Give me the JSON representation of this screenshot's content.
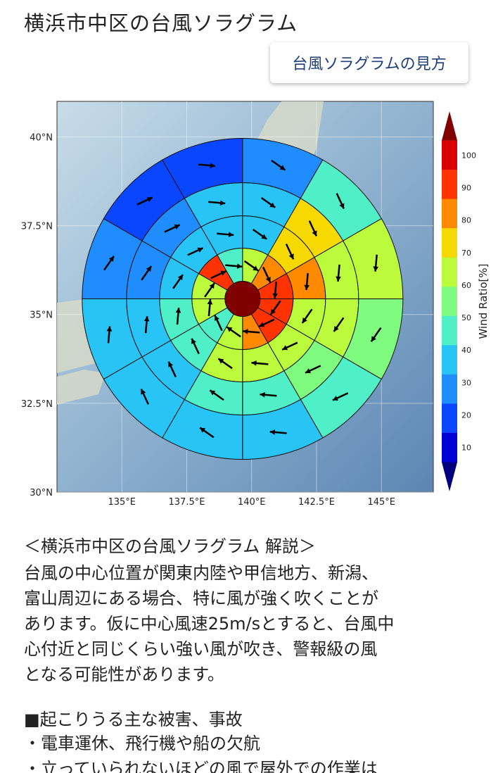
{
  "page": {
    "title": "横浜市中区の台風ソラグラム",
    "howto_button": "台風ソラグラムの見方"
  },
  "chart_data": {
    "type": "heatmap",
    "kind": "polar wind-ratio diagram over map",
    "center": [
      139.65,
      35.44
    ],
    "lon_ticks": [
      "135°E",
      "137.5°E",
      "140°E",
      "142.5°E",
      "145°E"
    ],
    "lat_ticks": [
      "40°N",
      "37.5°N",
      "35°N",
      "32.5°N",
      "30°N"
    ],
    "xlim": [
      132.5,
      147.0
    ],
    "ylim": [
      30.0,
      41.0
    ],
    "colorbar": {
      "label": "Wind Ratio[%]",
      "ticks": [
        10,
        20,
        30,
        40,
        50,
        60,
        70,
        80,
        90,
        100
      ],
      "colors": [
        "#00007f",
        "#0000d6",
        "#0a46ff",
        "#1f8cff",
        "#29c4f6",
        "#4ff0c8",
        "#7ffb80",
        "#bcfb3c",
        "#f6d900",
        "#ff8a00",
        "#ff3300",
        "#d90000",
        "#800000"
      ]
    },
    "rings": [
      {
        "name": "ring-1",
        "values": [
          60,
          75,
          85,
          80,
          85,
          75,
          55,
          45,
          55,
          55,
          80,
          45
        ]
      },
      {
        "name": "ring-2",
        "values": [
          35,
          70,
          75,
          60,
          60,
          55,
          55,
          40,
          40,
          30,
          30,
          35
        ]
      },
      {
        "name": "ring-3",
        "values": [
          30,
          65,
          55,
          55,
          50,
          40,
          40,
          30,
          30,
          25,
          25,
          30
        ]
      },
      {
        "name": "ring-4",
        "values": [
          25,
          45,
          55,
          50,
          45,
          35,
          30,
          30,
          30,
          25,
          20,
          20
        ]
      }
    ],
    "center_value": 100,
    "grid": true
  },
  "commentary": {
    "title": "＜横浜市中区の台風ソラグラム 解説＞",
    "lines": [
      "台風の中心位置が関東内陸や甲信地方、新潟、",
      "富山周辺にある場合、特に風が強く吹くことが",
      "あります。仮に中心風速25m/sとすると、台風中",
      "心付近と同じくらい強い風が吹き、警報級の風",
      "となる可能性があります。"
    ]
  },
  "damage": {
    "title": "■起こりうる主な被害、事故",
    "items": [
      "・電車運休、飛行機や船の欠航",
      "・立っていられないほどの風で屋外での作業は"
    ]
  }
}
